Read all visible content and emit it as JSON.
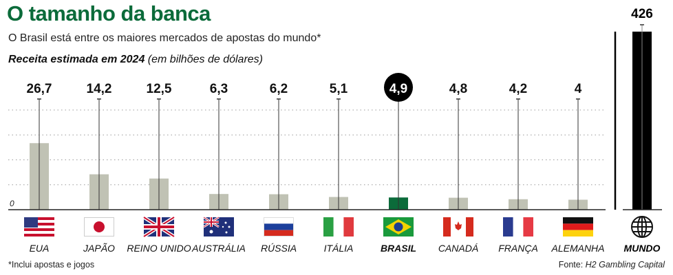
{
  "header": {
    "title": "O tamanho da banca",
    "subtitle": "O Brasil está entre os maiores mercados de apostas do mundo*",
    "measure": "Receita estimada em 2024",
    "unit": "(em bilhões de dólares)"
  },
  "chart_data": {
    "type": "bar",
    "title": "O tamanho da banca",
    "ylabel": "Receita estimada em 2024 (em bilhões de dólares)",
    "ylim": [
      0,
      40
    ],
    "yticks": [
      "0"
    ],
    "grid": true,
    "categories": [
      "EUA",
      "JAPÃO",
      "REINO UNIDO",
      "AUSTRÁLIA",
      "RÚSSIA",
      "ITÁLIA",
      "BRASIL",
      "CANADÁ",
      "FRANÇA",
      "ALEMANHA"
    ],
    "values": [
      26.7,
      14.2,
      12.5,
      6.3,
      6.2,
      5.1,
      4.9,
      4.8,
      4.2,
      4
    ],
    "labels": [
      "26,7",
      "14,2",
      "12,5",
      "6,3",
      "6,2",
      "5,1",
      "4,9",
      "4,8",
      "4,2",
      "4"
    ],
    "flags": [
      "us-flag-icon",
      "japan-flag-icon",
      "uk-flag-icon",
      "australia-flag-icon",
      "russia-flag-icon",
      "italy-flag-icon",
      "brazil-flag-icon",
      "canada-flag-icon",
      "france-flag-icon",
      "germany-flag-icon"
    ],
    "highlight": "BRASIL",
    "total": {
      "category": "MUNDO",
      "value": 426,
      "label": "426",
      "icon": "globe-icon"
    },
    "colors": {
      "bar": "#c0c2b4",
      "highlight": "#0b6b3a",
      "total": "#000000",
      "title": "#0b6b3a"
    }
  },
  "footer": {
    "footnote": "*Inclui apostas e jogos",
    "source_label": "Fonte:",
    "source": "H2 Gambling Capital"
  }
}
